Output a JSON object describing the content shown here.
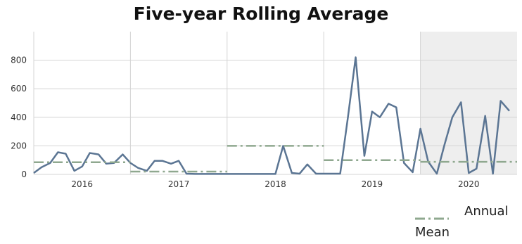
{
  "chart_data": {
    "type": "line",
    "title": "Five-year Rolling Average",
    "x": [
      2016,
      2016.08,
      2016.17,
      2016.25,
      2016.33,
      2016.42,
      2016.5,
      2016.58,
      2016.67,
      2016.75,
      2016.83,
      2016.92,
      2017,
      2017.08,
      2017.17,
      2017.25,
      2017.33,
      2017.42,
      2017.5,
      2017.58,
      2017.67,
      2017.75,
      2017.83,
      2017.92,
      2018,
      2018.08,
      2018.17,
      2018.25,
      2018.33,
      2018.42,
      2018.5,
      2018.58,
      2018.67,
      2018.75,
      2018.83,
      2018.92,
      2019,
      2019.08,
      2019.17,
      2019.25,
      2019.33,
      2019.42,
      2019.5,
      2019.58,
      2019.67,
      2019.75,
      2019.83,
      2019.92,
      2020,
      2020.08,
      2020.17,
      2020.25,
      2020.33,
      2020.42,
      2020.5,
      2020.58,
      2020.67,
      2020.75,
      2020.83,
      2020.92
    ],
    "series": [
      {
        "color": "#5b7593",
        "values": [
          10,
          50,
          80,
          155,
          145,
          25,
          55,
          150,
          140,
          75,
          80,
          140,
          80,
          45,
          25,
          95,
          95,
          75,
          95,
          5,
          3,
          3,
          3,
          3,
          3,
          3,
          3,
          3,
          3,
          3,
          3,
          200,
          10,
          5,
          70,
          5,
          5,
          5,
          5,
          400,
          820,
          130,
          440,
          400,
          495,
          470,
          80,
          15,
          320,
          90,
          5,
          210,
          400,
          505,
          10,
          40,
          410,
          5,
          515,
          445
        ]
      },
      {
        "name": "Annual Mean",
        "type": "step",
        "color": "#8fa88f",
        "x": [
          2016,
          2017,
          2018,
          2019,
          2020
        ],
        "values": [
          85,
          20,
          200,
          100,
          88
        ]
      }
    ],
    "xlim": [
      2016,
      2021
    ],
    "xticks": [
      {
        "value": 2016.5,
        "label": "2016"
      },
      {
        "value": 2017.5,
        "label": "2017"
      },
      {
        "value": 2018.5,
        "label": "2018"
      },
      {
        "value": 2019.5,
        "label": "2019"
      },
      {
        "value": 2020.5,
        "label": "2020"
      }
    ],
    "x_gridlines": [
      2017,
      2018,
      2019,
      2020
    ],
    "shaded_xrange": [
      2020,
      2021
    ],
    "ylim": [
      0,
      1000
    ],
    "yticks": [
      0,
      200,
      400,
      600,
      800
    ],
    "grid": true,
    "legend": "bottom-right"
  }
}
